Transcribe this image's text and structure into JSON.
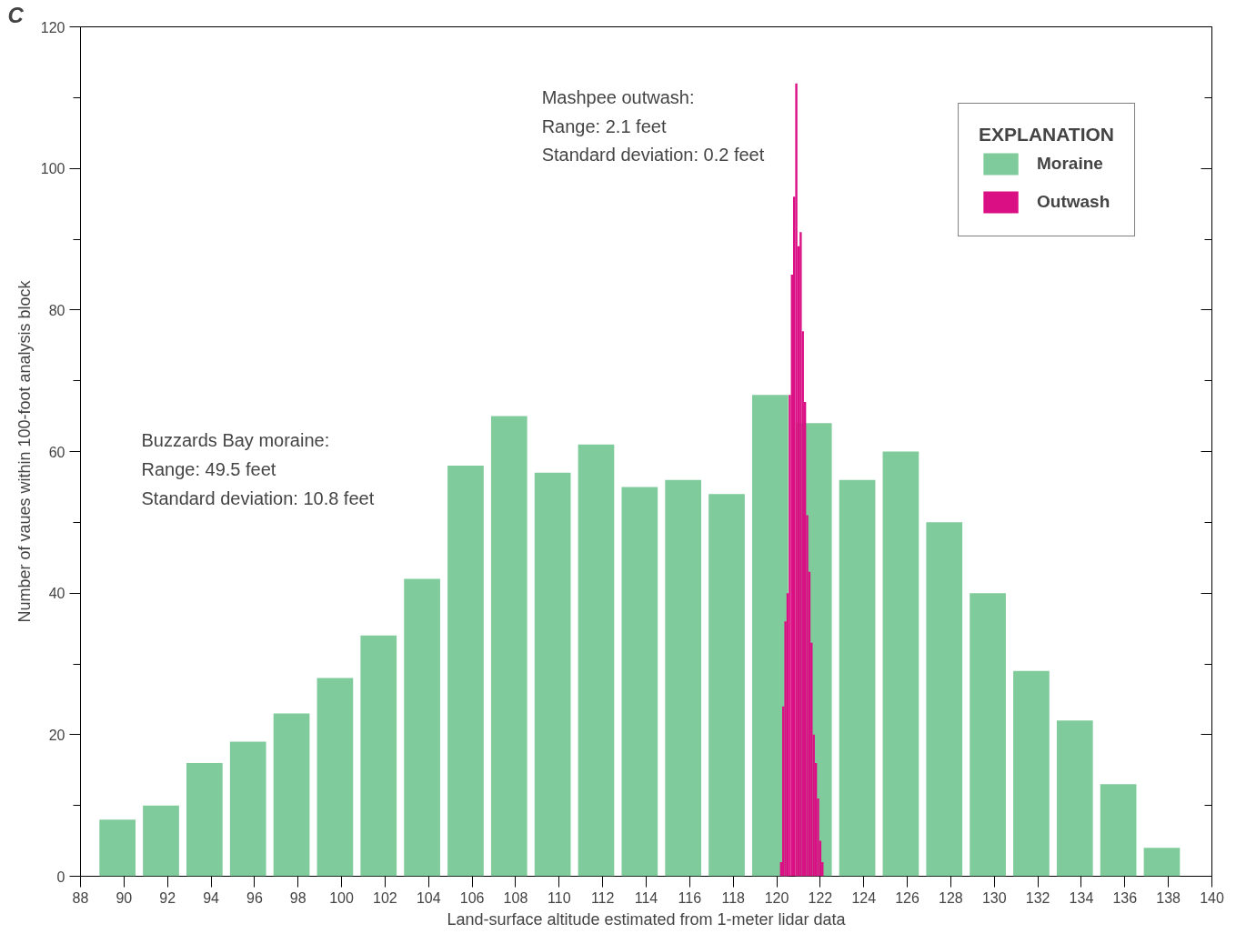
{
  "chart_data": {
    "type": "bar",
    "xlabel": "Land-surface altitude estimated from 1-meter lidar data",
    "ylabel": "Number of vaues within 100-foot analysis block",
    "legend_title": "EXPLANATION",
    "legend": "top right",
    "grid": false,
    "annotations": [
      "C",
      "Buzzards Bay moraine:\nRange: 49.5 feet\nStandard deviation: 10.8 feet",
      "Mashpee outwash:\nRange: 2.1 feet\nStandard deviation: 0.2 feet"
    ],
    "xlim": [
      88,
      140
    ],
    "xticks": [
      88,
      90,
      92,
      94,
      96,
      98,
      100,
      102,
      104,
      106,
      108,
      110,
      112,
      114,
      116,
      118,
      120,
      122,
      124,
      126,
      128,
      130,
      132,
      134,
      136,
      138,
      140
    ],
    "ylim": [
      0,
      120
    ],
    "yticks": [
      0,
      {
        "value": 10,
        "label": null
      },
      20,
      {
        "value": 30,
        "label": null
      },
      40,
      {
        "value": 50,
        "label": null
      },
      60,
      {
        "value": 70,
        "label": null
      },
      80,
      {
        "value": 90,
        "label": null
      },
      100,
      {
        "value": 110,
        "label": null
      },
      120
    ],
    "series": [
      {
        "name": "Moraine",
        "color": "#80cb9b",
        "x": [
          89.7,
          91.7,
          93.7,
          95.7,
          97.7,
          99.7,
          101.7,
          103.7,
          105.7,
          107.7,
          109.7,
          111.7,
          113.7,
          115.7,
          117.7,
          119.7,
          121.7,
          123.7,
          125.7,
          127.7,
          129.7,
          131.7,
          133.7,
          135.7,
          137.7
        ],
        "values": [
          8,
          10,
          16,
          19,
          23,
          28,
          34,
          42,
          58,
          65,
          57,
          61,
          55,
          56,
          54,
          68,
          64,
          56,
          60,
          50,
          40,
          29,
          22,
          13,
          4
        ]
      },
      {
        "name": "Outwash",
        "type": "histogram",
        "color": "#db0f84",
        "bins": [
          120.15,
          120.25,
          120.35,
          120.45,
          120.55,
          120.65,
          120.75,
          120.85,
          120.95,
          121.05,
          121.15,
          121.25,
          121.35,
          121.45,
          121.55,
          121.65,
          121.75,
          121.85,
          121.95,
          122.05,
          122.15
        ],
        "values": [
          2,
          24,
          36,
          40,
          68,
          85,
          96,
          112,
          89,
          91,
          77,
          67,
          51,
          43,
          33,
          20,
          16,
          11,
          5,
          2
        ]
      }
    ]
  }
}
